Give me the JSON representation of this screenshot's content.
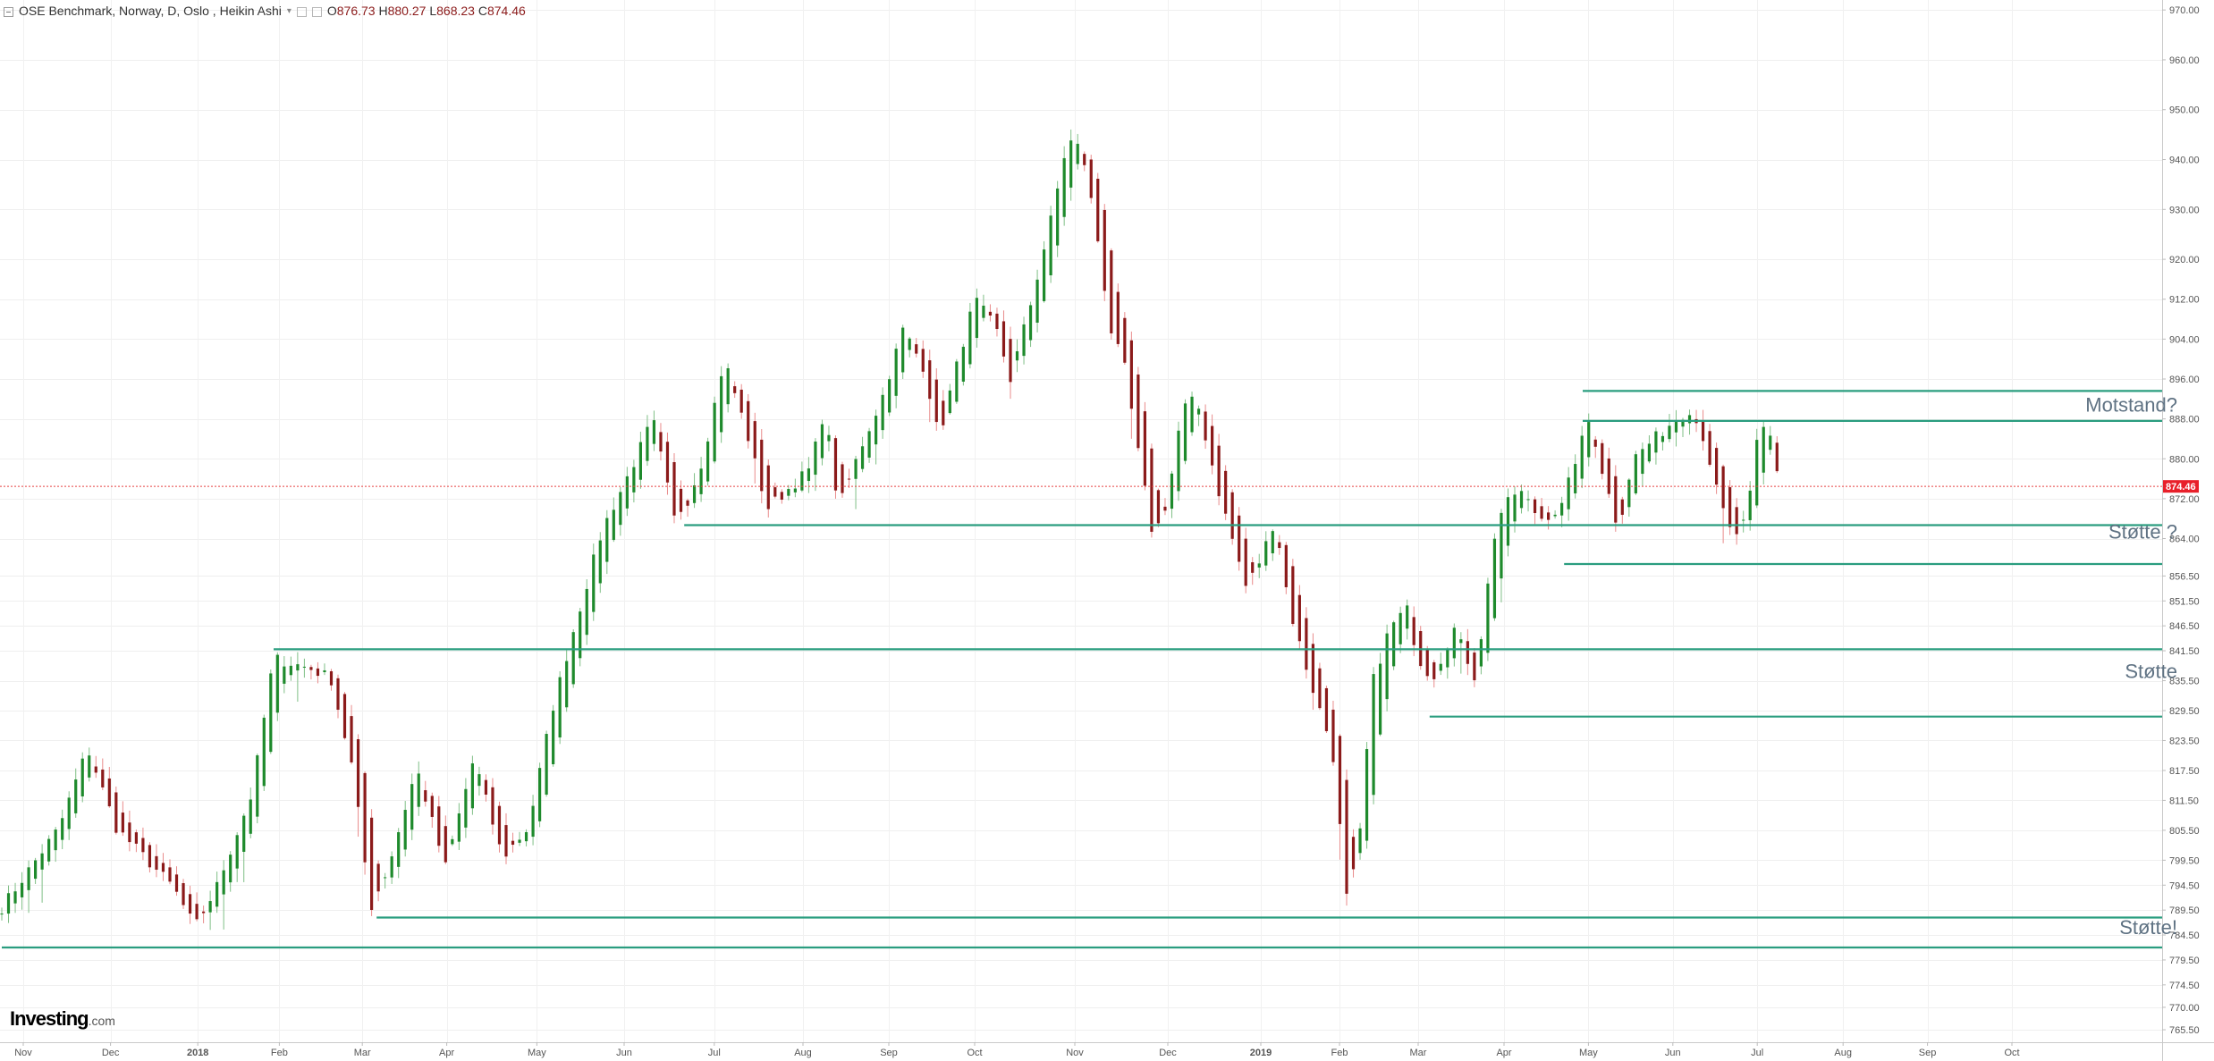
{
  "legend": {
    "symbol": "OSE Benchmark, Norway, D, Oslo , Heikin Ashi",
    "open_label": "O",
    "open": "876.73",
    "high_label": "H",
    "high": "880.27",
    "low_label": "L",
    "low": "868.23",
    "close_label": "C",
    "close": "874.46"
  },
  "logo": {
    "brand": "Investing",
    "suffix": ".com"
  },
  "colors": {
    "up": "#1e8a2c",
    "down": "#8b1a1a",
    "up_wick": "#7fbf86",
    "down_wick": "#e98b8b",
    "level_line": "#2a9d7f",
    "price_line": "#e84040",
    "annotation": "#5f7283",
    "price_badge": "#e8202a"
  },
  "chart_data": {
    "type": "candlestick",
    "ylim": [
      763,
      972
    ],
    "y_ticks": [
      "970.00",
      "960.00",
      "950.00",
      "940.00",
      "930.00",
      "920.00",
      "912.00",
      "904.00",
      "896.00",
      "888.00",
      "880.00",
      "872.00",
      "864.00",
      "856.50",
      "851.50",
      "846.50",
      "841.50",
      "835.50",
      "829.50",
      "823.50",
      "817.50",
      "811.50",
      "805.50",
      "799.50",
      "794.50",
      "789.50",
      "784.50",
      "779.50",
      "774.50",
      "770.00",
      "765.50"
    ],
    "x_labels": [
      "Nov",
      "Dec",
      "2018",
      "Feb",
      "Mar",
      "Apr",
      "May",
      "Jun",
      "Jul",
      "Aug",
      "Sep",
      "Oct",
      "Nov",
      "Dec",
      "2019",
      "Feb",
      "Mar",
      "Apr",
      "May",
      "Jun",
      "Jul",
      "Aug",
      "Sep",
      "Oct"
    ],
    "last_price": "874.46",
    "anchors": [
      [
        0,
        790
      ],
      [
        40,
        806
      ],
      [
        60,
        822
      ],
      [
        80,
        806
      ],
      [
        120,
        794
      ],
      [
        135,
        786
      ],
      [
        150,
        794
      ],
      [
        175,
        813
      ],
      [
        190,
        840
      ],
      [
        215,
        838
      ],
      [
        230,
        836
      ],
      [
        245,
        818
      ],
      [
        258,
        790
      ],
      [
        270,
        798
      ],
      [
        290,
        818
      ],
      [
        310,
        798
      ],
      [
        330,
        820
      ],
      [
        350,
        800
      ],
      [
        368,
        806
      ],
      [
        385,
        830
      ],
      [
        400,
        846
      ],
      [
        420,
        866
      ],
      [
        440,
        878
      ],
      [
        455,
        888
      ],
      [
        470,
        868
      ],
      [
        480,
        872
      ],
      [
        490,
        880
      ],
      [
        505,
        900
      ],
      [
        520,
        886
      ],
      [
        535,
        870
      ],
      [
        550,
        874
      ],
      [
        565,
        878
      ],
      [
        575,
        890
      ],
      [
        585,
        870
      ],
      [
        600,
        882
      ],
      [
        615,
        892
      ],
      [
        630,
        906
      ],
      [
        645,
        898
      ],
      [
        655,
        884
      ],
      [
        665,
        896
      ],
      [
        680,
        912
      ],
      [
        695,
        906
      ],
      [
        705,
        896
      ],
      [
        720,
        912
      ],
      [
        735,
        930
      ],
      [
        745,
        944
      ],
      [
        755,
        942
      ],
      [
        765,
        926
      ],
      [
        775,
        906
      ],
      [
        785,
        898
      ],
      [
        795,
        880
      ],
      [
        805,
        864
      ],
      [
        815,
        872
      ],
      [
        825,
        890
      ],
      [
        835,
        892
      ],
      [
        850,
        874
      ],
      [
        860,
        864
      ],
      [
        870,
        854
      ],
      [
        880,
        860
      ],
      [
        890,
        868
      ],
      [
        900,
        850
      ],
      [
        915,
        835
      ],
      [
        930,
        822
      ],
      [
        940,
        792
      ],
      [
        948,
        800
      ],
      [
        958,
        835
      ],
      [
        970,
        846
      ],
      [
        982,
        850
      ],
      [
        990,
        840
      ],
      [
        1000,
        836
      ],
      [
        1015,
        846
      ],
      [
        1030,
        836
      ],
      [
        1045,
        868
      ],
      [
        1060,
        874
      ],
      [
        1075,
        868
      ],
      [
        1090,
        870
      ],
      [
        1100,
        880
      ],
      [
        1110,
        888
      ],
      [
        1120,
        876
      ],
      [
        1130,
        866
      ],
      [
        1140,
        880
      ],
      [
        1155,
        884
      ],
      [
        1170,
        888
      ],
      [
        1180,
        890
      ],
      [
        1190,
        884
      ],
      [
        1200,
        872
      ],
      [
        1210,
        864
      ],
      [
        1220,
        868
      ],
      [
        1228,
        886
      ],
      [
        1235,
        886
      ],
      [
        1245,
        872
      ]
    ],
    "levels": [
      {
        "y": 893.6,
        "x_start_day": 1105
      },
      {
        "y": 887.6,
        "x_start_day": 1105
      },
      {
        "y": 866.7,
        "x_start_day": 477
      },
      {
        "y": 858.9,
        "x_start_day": 1092
      },
      {
        "y": 841.8,
        "x_start_day": 190
      },
      {
        "y": 828.3,
        "x_start_day": 998
      },
      {
        "y": 788.0,
        "x_start_day": 262
      },
      {
        "y": 782.0,
        "x_start_day": 0
      }
    ],
    "annotations": [
      {
        "text": "Motstand?",
        "y": 889.5
      },
      {
        "text": "Støtte ?",
        "y": 864.0
      },
      {
        "text": "Støtte",
        "y": 836.0
      },
      {
        "text": "Støtte!",
        "y": 784.7
      }
    ]
  }
}
